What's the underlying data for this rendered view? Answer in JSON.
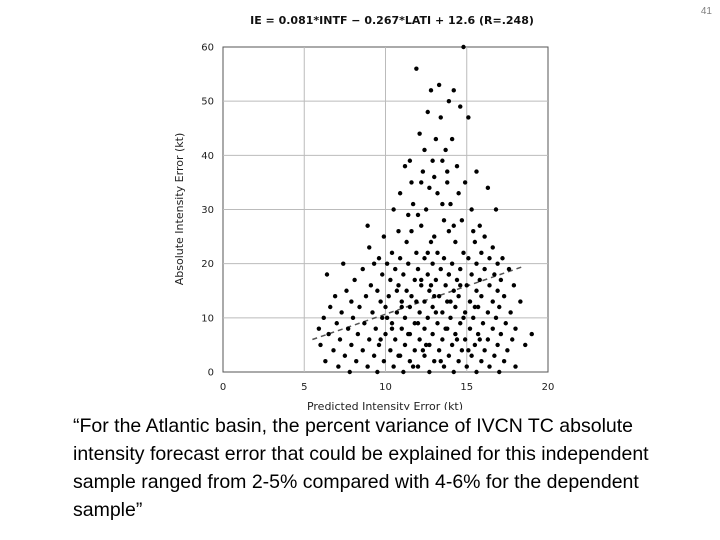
{
  "slide": {
    "number": "41"
  },
  "caption": "“For the Atlantic basin, the percent variance of IVCN TC absolute intensity forecast error that could be explained for this independent sample ranged from 2-5% compared with 4-6% for the dependent sample”",
  "chart_data": {
    "type": "scatter",
    "title": "IE = 0.081*INTF − 0.267*LATI + 12.6  (R=.248)",
    "xlabel": "Predicted Intensity Error (kt)",
    "ylabel": "Absolute Intensity Error (kt)",
    "xlim": [
      0,
      20
    ],
    "ylim": [
      0,
      60
    ],
    "xticks": [
      "0",
      "5",
      "10",
      "15",
      "20"
    ],
    "yticks": [
      "0",
      "10",
      "20",
      "30",
      "40",
      "50",
      "60"
    ],
    "grid": true,
    "colors": {
      "points": "#000000",
      "fit_line": "#555555",
      "grid": "#bbbbbb"
    },
    "fit_line": {
      "x": [
        5.5,
        18.5
      ],
      "y": [
        6,
        19.5
      ]
    },
    "points": [
      [
        14.8,
        60
      ],
      [
        11.9,
        56
      ],
      [
        13.3,
        53
      ],
      [
        12.8,
        52
      ],
      [
        14.2,
        52
      ],
      [
        13.9,
        50
      ],
      [
        14.6,
        49
      ],
      [
        12.6,
        48
      ],
      [
        13.4,
        47
      ],
      [
        15.1,
        47
      ],
      [
        12.1,
        44
      ],
      [
        13.1,
        43
      ],
      [
        14.1,
        43
      ],
      [
        12.4,
        41
      ],
      [
        13.7,
        41
      ],
      [
        12.9,
        39
      ],
      [
        13.5,
        39
      ],
      [
        11.2,
        38
      ],
      [
        14.4,
        38
      ],
      [
        12.3,
        37
      ],
      [
        15.6,
        37
      ],
      [
        13.0,
        36
      ],
      [
        11.6,
        35
      ],
      [
        13.8,
        35
      ],
      [
        14.9,
        35
      ],
      [
        12.7,
        34
      ],
      [
        10.9,
        33
      ],
      [
        16.3,
        34
      ],
      [
        13.2,
        33
      ],
      [
        11.7,
        31
      ],
      [
        14.0,
        31
      ],
      [
        10.5,
        30
      ],
      [
        12.5,
        30
      ],
      [
        15.3,
        30
      ],
      [
        16.8,
        30
      ],
      [
        11.4,
        29
      ],
      [
        13.6,
        28
      ],
      [
        14.7,
        28
      ],
      [
        8.9,
        27
      ],
      [
        12.2,
        27
      ],
      [
        15.8,
        27
      ],
      [
        10.8,
        26
      ],
      [
        13.9,
        26
      ],
      [
        16.1,
        25
      ],
      [
        9.9,
        25
      ],
      [
        11.3,
        24
      ],
      [
        12.8,
        24
      ],
      [
        14.3,
        24
      ],
      [
        15.5,
        24
      ],
      [
        16.6,
        23
      ],
      [
        9.0,
        23
      ],
      [
        10.4,
        22
      ],
      [
        11.9,
        22
      ],
      [
        13.2,
        22
      ],
      [
        14.8,
        22
      ],
      [
        15.9,
        22
      ],
      [
        9.6,
        21
      ],
      [
        10.9,
        21
      ],
      [
        12.4,
        21
      ],
      [
        13.6,
        21
      ],
      [
        15.1,
        21
      ],
      [
        16.4,
        21
      ],
      [
        17.2,
        21
      ],
      [
        7.4,
        20
      ],
      [
        9.3,
        20
      ],
      [
        10.1,
        20
      ],
      [
        11.4,
        20
      ],
      [
        12.9,
        20
      ],
      [
        14.1,
        20
      ],
      [
        15.6,
        20
      ],
      [
        16.9,
        20
      ],
      [
        8.6,
        19
      ],
      [
        10.6,
        19
      ],
      [
        12.0,
        19
      ],
      [
        13.4,
        19
      ],
      [
        14.6,
        19
      ],
      [
        16.1,
        19
      ],
      [
        17.6,
        19
      ],
      [
        6.4,
        18
      ],
      [
        9.8,
        18
      ],
      [
        11.1,
        18
      ],
      [
        12.6,
        18
      ],
      [
        13.9,
        18
      ],
      [
        15.3,
        18
      ],
      [
        16.7,
        18
      ],
      [
        8.1,
        17
      ],
      [
        10.3,
        17
      ],
      [
        11.8,
        17
      ],
      [
        13.1,
        17
      ],
      [
        14.4,
        17
      ],
      [
        15.8,
        17
      ],
      [
        17.1,
        17
      ],
      [
        9.1,
        16
      ],
      [
        10.8,
        16
      ],
      [
        12.2,
        16
      ],
      [
        13.7,
        16
      ],
      [
        15.0,
        16
      ],
      [
        16.4,
        16
      ],
      [
        17.9,
        16
      ],
      [
        7.6,
        15
      ],
      [
        9.5,
        15
      ],
      [
        11.3,
        15
      ],
      [
        12.7,
        15
      ],
      [
        14.2,
        15
      ],
      [
        15.6,
        15
      ],
      [
        16.9,
        15
      ],
      [
        6.9,
        14
      ],
      [
        8.8,
        14
      ],
      [
        10.2,
        14
      ],
      [
        11.6,
        14
      ],
      [
        13.0,
        14
      ],
      [
        14.5,
        14
      ],
      [
        15.9,
        14
      ],
      [
        17.3,
        14
      ],
      [
        7.9,
        13
      ],
      [
        9.7,
        13
      ],
      [
        11.0,
        13
      ],
      [
        12.4,
        13
      ],
      [
        13.8,
        13
      ],
      [
        15.2,
        13
      ],
      [
        16.6,
        13
      ],
      [
        18.3,
        13
      ],
      [
        6.6,
        12
      ],
      [
        8.4,
        12
      ],
      [
        10.0,
        12
      ],
      [
        11.5,
        12
      ],
      [
        12.9,
        12
      ],
      [
        14.3,
        12
      ],
      [
        15.7,
        12
      ],
      [
        17.0,
        12
      ],
      [
        7.3,
        11
      ],
      [
        9.2,
        11
      ],
      [
        10.7,
        11
      ],
      [
        12.1,
        11
      ],
      [
        13.5,
        11
      ],
      [
        14.9,
        11
      ],
      [
        16.3,
        11
      ],
      [
        17.7,
        11
      ],
      [
        6.2,
        10
      ],
      [
        8.0,
        10
      ],
      [
        9.8,
        10
      ],
      [
        11.2,
        10
      ],
      [
        12.6,
        10
      ],
      [
        14.0,
        10
      ],
      [
        15.4,
        10
      ],
      [
        16.8,
        10
      ],
      [
        7.0,
        9
      ],
      [
        8.7,
        9
      ],
      [
        10.4,
        9
      ],
      [
        11.8,
        9
      ],
      [
        13.2,
        9
      ],
      [
        14.6,
        9
      ],
      [
        16.0,
        9
      ],
      [
        17.4,
        9
      ],
      [
        5.9,
        8
      ],
      [
        7.7,
        8
      ],
      [
        9.4,
        8
      ],
      [
        11.0,
        8
      ],
      [
        12.4,
        8
      ],
      [
        13.8,
        8
      ],
      [
        15.2,
        8
      ],
      [
        16.6,
        8
      ],
      [
        18.0,
        8
      ],
      [
        6.5,
        7
      ],
      [
        8.3,
        7
      ],
      [
        10.0,
        7
      ],
      [
        11.5,
        7
      ],
      [
        12.9,
        7
      ],
      [
        14.3,
        7
      ],
      [
        15.7,
        7
      ],
      [
        17.1,
        7
      ],
      [
        19.0,
        7
      ],
      [
        7.2,
        6
      ],
      [
        9.0,
        6
      ],
      [
        10.6,
        6
      ],
      [
        12.1,
        6
      ],
      [
        13.5,
        6
      ],
      [
        14.9,
        6
      ],
      [
        16.3,
        6
      ],
      [
        17.8,
        6
      ],
      [
        6.0,
        5
      ],
      [
        7.9,
        5
      ],
      [
        9.6,
        5
      ],
      [
        11.2,
        5
      ],
      [
        12.7,
        5
      ],
      [
        14.1,
        5
      ],
      [
        15.5,
        5
      ],
      [
        16.9,
        5
      ],
      [
        18.6,
        5
      ],
      [
        6.8,
        4
      ],
      [
        8.6,
        4
      ],
      [
        10.3,
        4
      ],
      [
        11.8,
        4
      ],
      [
        13.3,
        4
      ],
      [
        14.7,
        4
      ],
      [
        16.1,
        4
      ],
      [
        17.5,
        4
      ],
      [
        7.5,
        3
      ],
      [
        9.3,
        3
      ],
      [
        10.9,
        3
      ],
      [
        12.4,
        3
      ],
      [
        13.9,
        3
      ],
      [
        15.3,
        3
      ],
      [
        16.7,
        3
      ],
      [
        6.3,
        2
      ],
      [
        8.2,
        2
      ],
      [
        9.9,
        2
      ],
      [
        11.5,
        2
      ],
      [
        13.0,
        2
      ],
      [
        14.5,
        2
      ],
      [
        15.9,
        2
      ],
      [
        17.3,
        2
      ],
      [
        7.1,
        1
      ],
      [
        8.9,
        1
      ],
      [
        10.5,
        1
      ],
      [
        12.0,
        1
      ],
      [
        13.6,
        1
      ],
      [
        15.0,
        1
      ],
      [
        16.4,
        1
      ],
      [
        18.0,
        1
      ],
      [
        7.8,
        0
      ],
      [
        9.5,
        0
      ],
      [
        11.1,
        0
      ],
      [
        12.7,
        0
      ],
      [
        14.2,
        0
      ],
      [
        15.6,
        0
      ],
      [
        17.0,
        0
      ],
      [
        10.8,
        3
      ],
      [
        11.4,
        7
      ],
      [
        12.0,
        9
      ],
      [
        12.3,
        4
      ],
      [
        13.1,
        11
      ],
      [
        13.4,
        2
      ],
      [
        13.7,
        8
      ],
      [
        14.0,
        13
      ],
      [
        14.4,
        6
      ],
      [
        10.1,
        10
      ],
      [
        10.7,
        15
      ],
      [
        11.0,
        12
      ],
      [
        12.8,
        16
      ],
      [
        13.3,
        14
      ],
      [
        11.9,
        13
      ],
      [
        12.5,
        5
      ],
      [
        14.8,
        10
      ],
      [
        15.1,
        4
      ],
      [
        9.7,
        6
      ],
      [
        10.4,
        8
      ],
      [
        11.7,
        1
      ],
      [
        12.2,
        17
      ],
      [
        13.9,
        18
      ],
      [
        14.6,
        16
      ],
      [
        12.6,
        22
      ],
      [
        13.0,
        25
      ],
      [
        11.6,
        26
      ],
      [
        14.2,
        27
      ],
      [
        15.4,
        26
      ],
      [
        12.0,
        29
      ],
      [
        13.5,
        31
      ],
      [
        14.5,
        33
      ],
      [
        12.2,
        35
      ],
      [
        13.8,
        37
      ],
      [
        11.5,
        39
      ],
      [
        15.5,
        12
      ],
      [
        15.8,
        6
      ]
    ]
  }
}
